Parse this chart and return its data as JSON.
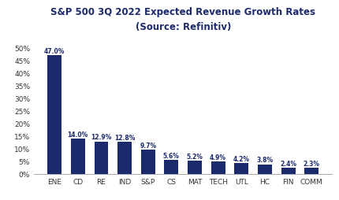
{
  "title_line1": "S&P 500 3Q 2022 Expected Revenue Growth Rates",
  "title_line2": "(Source: Refinitiv)",
  "categories": [
    "ENE",
    "CD",
    "RE",
    "IND",
    "S&P",
    "CS",
    "MAT",
    "TECH",
    "UTL",
    "HC",
    "FIN",
    "COMM"
  ],
  "values": [
    47.0,
    14.0,
    12.9,
    12.8,
    9.7,
    5.6,
    5.2,
    4.9,
    4.2,
    3.8,
    2.4,
    2.3
  ],
  "bar_color": "#1b2a6b",
  "label_color": "#1b2a6b",
  "background_color": "#ffffff",
  "ylim": [
    0,
    55
  ],
  "yticks": [
    0,
    5,
    10,
    15,
    20,
    25,
    30,
    35,
    40,
    45,
    50
  ],
  "title_fontsize": 8.5,
  "label_fontsize": 5.5,
  "tick_fontsize": 6.5,
  "xtick_fontsize": 6.5
}
